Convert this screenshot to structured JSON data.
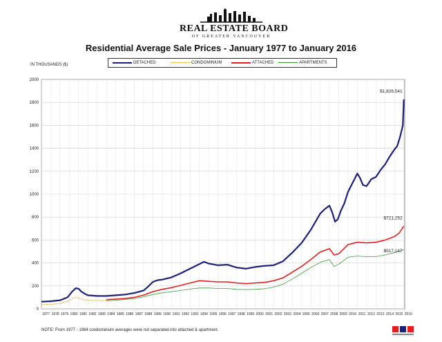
{
  "header": {
    "logo_main": "REAL ESTATE BOARD",
    "logo_sub": "OF GREATER VANCOUVER"
  },
  "chart_data": {
    "type": "line",
    "title": "Residential Average Sale Prices  -  January 1977 to January 2016",
    "ylabel": "IN THOUSANDS ($)",
    "xlabel": "",
    "ylim": [
      0,
      2000
    ],
    "yticks": [
      0,
      200,
      400,
      600,
      800,
      1000,
      1200,
      1400,
      1600,
      1800,
      2000
    ],
    "xlim": [
      1977,
      2016.1
    ],
    "xticks": [
      "1977",
      "1978",
      "1979",
      "1980",
      "1981",
      "1982",
      "1983",
      "1984",
      "1985",
      "1986",
      "1987",
      "1988",
      "1989",
      "1990",
      "1991",
      "1992",
      "1993",
      "1994",
      "1995",
      "1996",
      "1997",
      "1998",
      "1999",
      "2000",
      "2001",
      "2002",
      "2003",
      "2004",
      "2005",
      "2006",
      "2007",
      "2008",
      "2009",
      "2010",
      "2011",
      "2012",
      "2013",
      "2014",
      "2015",
      "2016"
    ],
    "grid": true,
    "legend_position": "top",
    "series": [
      {
        "name": "DETACHED",
        "color": "#1a1f7a",
        "dash": "solid",
        "x": [
          1977,
          1978,
          1979,
          1979.8,
          1980.3,
          1980.7,
          1981.0,
          1981.3,
          1981.7,
          1982,
          1982.5,
          1983,
          1984,
          1985,
          1986,
          1987,
          1988,
          1988.5,
          1989,
          1989.5,
          1990,
          1991,
          1992,
          1993,
          1994,
          1994.5,
          1995,
          1996,
          1997,
          1998,
          1999,
          2000,
          2001,
          2002,
          2003,
          2004,
          2005,
          2006,
          2006.5,
          2007,
          2007.5,
          2008,
          2008.3,
          2008.6,
          2008.9,
          2009.2,
          2009.6,
          2010,
          2010.5,
          2011,
          2011.3,
          2011.6,
          2012,
          2012.5,
          2013,
          2013.5,
          2014,
          2014.5,
          2015,
          2015.3,
          2015.6,
          2015.9,
          2016.0
        ],
        "y": [
          62,
          66,
          75,
          100,
          150,
          180,
          175,
          150,
          130,
          118,
          115,
          112,
          112,
          118,
          125,
          138,
          160,
          195,
          235,
          250,
          255,
          275,
          310,
          350,
          390,
          410,
          395,
          380,
          385,
          360,
          350,
          365,
          375,
          380,
          415,
          490,
          575,
          690,
          760,
          830,
          870,
          900,
          840,
          760,
          780,
          850,
          920,
          1020,
          1100,
          1180,
          1140,
          1080,
          1070,
          1130,
          1150,
          1210,
          1260,
          1330,
          1390,
          1420,
          1500,
          1600,
          1826
        ]
      },
      {
        "name": "CONDOMINIUM",
        "color": "#e0a020",
        "dash": "dotted",
        "x": [
          1977,
          1978,
          1979,
          1979.8,
          1980.3,
          1980.7,
          1981.0,
          1981.3,
          1981.7,
          1982,
          1983,
          1984
        ],
        "y": [
          38,
          40,
          45,
          65,
          90,
          100,
          95,
          85,
          78,
          75,
          72,
          75
        ]
      },
      {
        "name": "ATTACHED",
        "color": "#e02020",
        "dash": "solid",
        "x": [
          1984,
          1985,
          1986,
          1987,
          1988,
          1989,
          1990,
          1991,
          1992,
          1993,
          1994,
          1995,
          1996,
          1997,
          1998,
          1999,
          2000,
          2001,
          2002,
          2003,
          2004,
          2005,
          2006,
          2007,
          2008,
          2008.5,
          2009,
          2009.5,
          2010,
          2011,
          2012,
          2013,
          2014,
          2015,
          2015.5,
          2016.0
        ],
        "y": [
          80,
          85,
          90,
          100,
          120,
          150,
          170,
          185,
          205,
          225,
          245,
          240,
          235,
          235,
          225,
          220,
          225,
          230,
          245,
          270,
          320,
          370,
          430,
          495,
          525,
          470,
          480,
          520,
          560,
          580,
          575,
          580,
          600,
          630,
          660,
          721
        ]
      },
      {
        "name": "APARTMENTS",
        "color": "#3a9a3a",
        "dash": "solid",
        "x": [
          1984,
          1985,
          1986,
          1987,
          1988,
          1989,
          1990,
          1991,
          1992,
          1993,
          1994,
          1995,
          1996,
          1997,
          1998,
          1999,
          2000,
          2001,
          2002,
          2003,
          2004,
          2005,
          2006,
          2007,
          2008,
          2008.5,
          2009,
          2009.5,
          2010,
          2011,
          2012,
          2013,
          2014,
          2015,
          2015.5,
          2016.0
        ],
        "y": [
          70,
          75,
          82,
          90,
          105,
          125,
          140,
          150,
          160,
          172,
          182,
          182,
          178,
          178,
          170,
          168,
          170,
          175,
          190,
          215,
          260,
          310,
          360,
          405,
          430,
          370,
          390,
          420,
          450,
          460,
          455,
          455,
          470,
          490,
          500,
          517
        ]
      }
    ],
    "annotations": [
      {
        "text": "$1,826,541",
        "x": 2016.0,
        "y": 1826
      },
      {
        "text": "$721,252",
        "x": 2016.0,
        "y": 721
      },
      {
        "text": "$517,147",
        "x": 2016.0,
        "y": 517
      }
    ]
  },
  "note": "NOTE:  From 1977 - 1984 condominium averages were not separated into attached & apartment."
}
